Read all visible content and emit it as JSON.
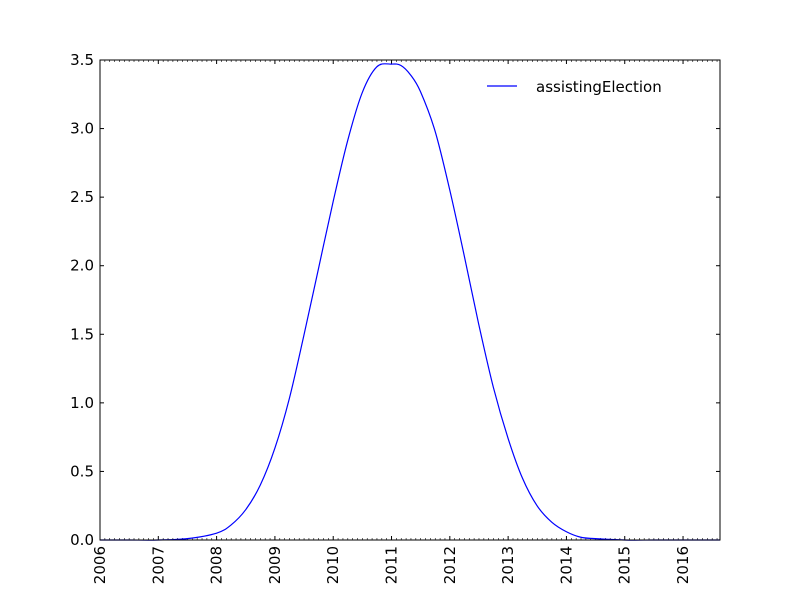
{
  "chart_data": {
    "type": "line",
    "xlabel": "",
    "ylabel": "",
    "xlim": [
      "2006-01-01",
      "2016-08-20"
    ],
    "ylim": [
      0,
      3.5
    ],
    "x_ticks": [
      "2006",
      "2007",
      "2008",
      "2009",
      "2010",
      "2011",
      "2012",
      "2013",
      "2014",
      "2015",
      "2016"
    ],
    "y_ticks": [
      "0.0",
      "0.5",
      "1.0",
      "1.5",
      "2.0",
      "2.5",
      "3.0",
      "3.5"
    ],
    "grid": false,
    "legend_position": "top-right",
    "series": [
      {
        "name": "assistingElection",
        "color": "#0000ff",
        "x": [
          "2006-01-01",
          "2006-07-01",
          "2007-01-01",
          "2007-07-01",
          "2008-01-01",
          "2008-04-01",
          "2008-07-01",
          "2008-10-01",
          "2009-01-01",
          "2009-04-01",
          "2009-07-01",
          "2009-10-01",
          "2010-01-01",
          "2010-04-01",
          "2010-07-01",
          "2010-10-01",
          "2011-01-01",
          "2011-03-01",
          "2011-05-01",
          "2011-07-01",
          "2011-10-01",
          "2012-01-01",
          "2012-04-01",
          "2012-07-01",
          "2012-10-01",
          "2013-01-01",
          "2013-04-01",
          "2013-07-01",
          "2013-10-01",
          "2014-01-01",
          "2014-04-01",
          "2014-07-01",
          "2015-01-01",
          "2015-07-01",
          "2016-01-01",
          "2016-08-20"
        ],
        "y": [
          0.0,
          0.0,
          0.0,
          0.01,
          0.05,
          0.11,
          0.22,
          0.4,
          0.67,
          1.03,
          1.49,
          1.98,
          2.47,
          2.91,
          3.26,
          3.45,
          3.47,
          3.46,
          3.39,
          3.27,
          2.98,
          2.55,
          2.07,
          1.57,
          1.11,
          0.74,
          0.45,
          0.25,
          0.13,
          0.06,
          0.02,
          0.01,
          0.0,
          0.0,
          0.0,
          0.0
        ]
      }
    ]
  }
}
